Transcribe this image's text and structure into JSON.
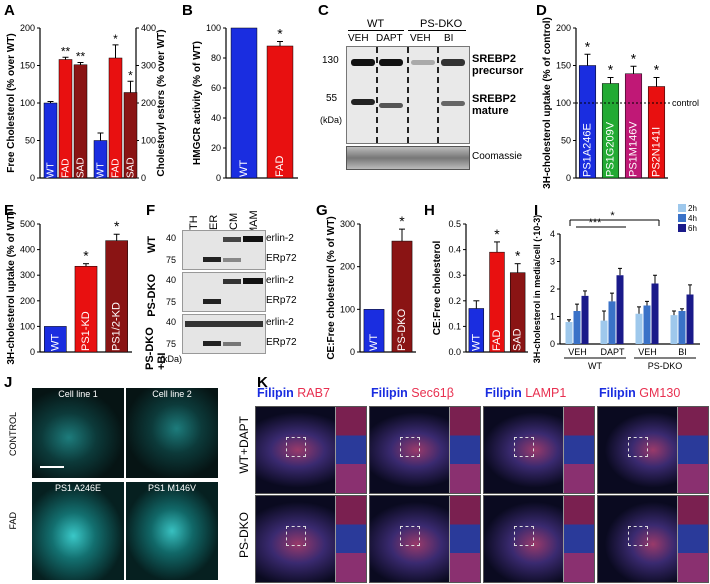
{
  "panels": {
    "A": {
      "label": "A",
      "ylabel_left": "Free Cholesterol (% over WT)",
      "ylabel_right": "Cholesteryl esters (% over WT)",
      "ylim_left": [
        0,
        200
      ],
      "ylim_right": [
        0,
        400
      ],
      "yticks_left": [
        "0",
        "50",
        "100",
        "150",
        "200"
      ],
      "yticks_right": [
        "0",
        "100",
        "200",
        "300",
        "400"
      ],
      "groups": [
        {
          "axis": "left",
          "bars": [
            {
              "label": "WT",
              "value": 100,
              "err": 2,
              "color": "#1a2de0",
              "sig": ""
            },
            {
              "label": "FAD",
              "value": 158,
              "err": 3,
              "color": "#e81010",
              "sig": "**"
            },
            {
              "label": "SAD",
              "value": 151,
              "err": 3,
              "color": "#8a1414",
              "sig": "**"
            }
          ]
        },
        {
          "axis": "right",
          "bars": [
            {
              "label": "WT",
              "value": 100,
              "err": 20,
              "color": "#1a2de0",
              "sig": ""
            },
            {
              "label": "FAD",
              "value": 320,
              "err": 35,
              "color": "#e81010",
              "sig": "*"
            },
            {
              "label": "SAD",
              "value": 228,
              "err": 30,
              "color": "#8a1414",
              "sig": "*"
            }
          ]
        }
      ]
    },
    "B": {
      "label": "B",
      "ylabel": "HMGCR activity (% of WT)",
      "ylim": [
        0,
        100
      ],
      "yticks": [
        "0",
        "20",
        "40",
        "60",
        "80",
        "100"
      ],
      "bars": [
        {
          "label": "WT",
          "value": 100,
          "err": 0,
          "color": "#1a2de0",
          "sig": ""
        },
        {
          "label": "FAD",
          "value": 88,
          "err": 3,
          "color": "#e81010",
          "sig": "*"
        }
      ]
    },
    "C": {
      "label": "C",
      "group_wt": "WT",
      "group_ko": "PS-DKO",
      "lanes": [
        "VEH",
        "DAPT",
        "VEH",
        "BI"
      ],
      "mw_130": "130",
      "mw_55": "55",
      "kda": "(kDa)",
      "band_precursor": "SREBP2 precursor",
      "band_mature": "SREBP2 mature",
      "loading": "Coomassie"
    },
    "D": {
      "label": "D",
      "ylabel": "3H-cholesterol uptake (% of control)",
      "ylim": [
        0,
        200
      ],
      "yticks": [
        "0",
        "50",
        "100",
        "150",
        "200"
      ],
      "control_label": "control",
      "bars": [
        {
          "label": "PS1A246E",
          "value": 150,
          "err": 15,
          "color": "#1a2de0",
          "sig": "*"
        },
        {
          "label": "PS1G209V",
          "value": 126,
          "err": 8,
          "color": "#22aa33",
          "sig": "*"
        },
        {
          "label": "PS1M146V",
          "value": 139,
          "err": 10,
          "color": "#c01876",
          "sig": "*"
        },
        {
          "label": "PS2N141I",
          "value": 122,
          "err": 12,
          "color": "#e81010",
          "sig": "*"
        }
      ]
    },
    "E": {
      "label": "E",
      "ylabel": "3H-cholesterol uptake (% of WT)",
      "ylim": [
        0,
        500
      ],
      "yticks": [
        "0",
        "100",
        "200",
        "300",
        "400",
        "500"
      ],
      "bars": [
        {
          "label": "WT",
          "value": 100,
          "err": 0,
          "color": "#1a2de0",
          "sig": ""
        },
        {
          "label": "PS1-KD",
          "value": 335,
          "err": 10,
          "color": "#e81010",
          "sig": "*"
        },
        {
          "label": "PS1/2-KD",
          "value": 435,
          "err": 25,
          "color": "#8a1414",
          "sig": "*"
        }
      ]
    },
    "F": {
      "label": "F",
      "fractions": [
        "TH",
        "ER",
        "CM",
        "MAM"
      ],
      "rows": [
        "WT",
        "PS-DKO",
        "PS-DKO +BI"
      ],
      "mw_40": "40",
      "mw_75": "75",
      "kda": "(kDa)",
      "band1": "erlin-2",
      "band2": "ERp72"
    },
    "G": {
      "label": "G",
      "ylabel": "CE:Free cholesterol (% of WT)",
      "ylim": [
        0,
        300
      ],
      "yticks": [
        "0",
        "100",
        "200",
        "300"
      ],
      "bars": [
        {
          "label": "WT",
          "value": 100,
          "err": 0,
          "color": "#1a2de0",
          "sig": ""
        },
        {
          "label": "PS-DKO",
          "value": 260,
          "err": 28,
          "color": "#8a1414",
          "sig": "*"
        }
      ]
    },
    "H": {
      "label": "H",
      "ylabel": "CE:Free cholesterol",
      "ylim": [
        0,
        0.5
      ],
      "yticks": [
        "0.0",
        "0.1",
        "0.2",
        "0.3",
        "0.4",
        "0.5"
      ],
      "bars": [
        {
          "label": "WT",
          "value": 0.17,
          "err": 0.03,
          "color": "#1a2de0",
          "sig": ""
        },
        {
          "label": "FAD",
          "value": 0.39,
          "err": 0.04,
          "color": "#e81010",
          "sig": "*"
        },
        {
          "label": "SAD",
          "value": 0.31,
          "err": 0.035,
          "color": "#8a1414",
          "sig": "*"
        }
      ]
    },
    "I": {
      "label": "I",
      "ylabel": "3H-cholesterol in media/cell (·10-3)",
      "ylim": [
        0,
        4
      ],
      "yticks": [
        "0",
        "1",
        "2",
        "3",
        "4"
      ],
      "legend": [
        "2h",
        "4h",
        "6h"
      ],
      "colors": [
        "#9ec8ec",
        "#3a72c8",
        "#1a1a8a"
      ],
      "categories": [
        "VEH",
        "DAPT",
        "VEH",
        "BI"
      ],
      "group_labels": [
        "WT",
        "PS-DKO"
      ],
      "sig_outer": "*",
      "sig_inner": "***",
      "values": [
        [
          0.8,
          1.2,
          1.75
        ],
        [
          0.85,
          1.55,
          2.5
        ],
        [
          1.1,
          1.4,
          2.2
        ],
        [
          1.05,
          1.2,
          1.8
        ]
      ],
      "errs": [
        [
          0.08,
          0.25,
          0.18
        ],
        [
          0.35,
          0.3,
          0.25
        ],
        [
          0.25,
          0.15,
          0.3
        ],
        [
          0.15,
          0.08,
          0.35
        ]
      ]
    },
    "J": {
      "label": "J",
      "titles": [
        "Cell line 1",
        "Cell line 2",
        "PS1 A246E",
        "PS1 M146V"
      ],
      "rows": [
        "CONTROL",
        "FAD"
      ]
    },
    "K": {
      "label": "K",
      "filipin": "Filipin",
      "markers": [
        "RAB7",
        "Sec61β",
        "LAMP1",
        "GM130"
      ],
      "rows": [
        "WT+DAPT",
        "PS-DKO"
      ]
    }
  }
}
